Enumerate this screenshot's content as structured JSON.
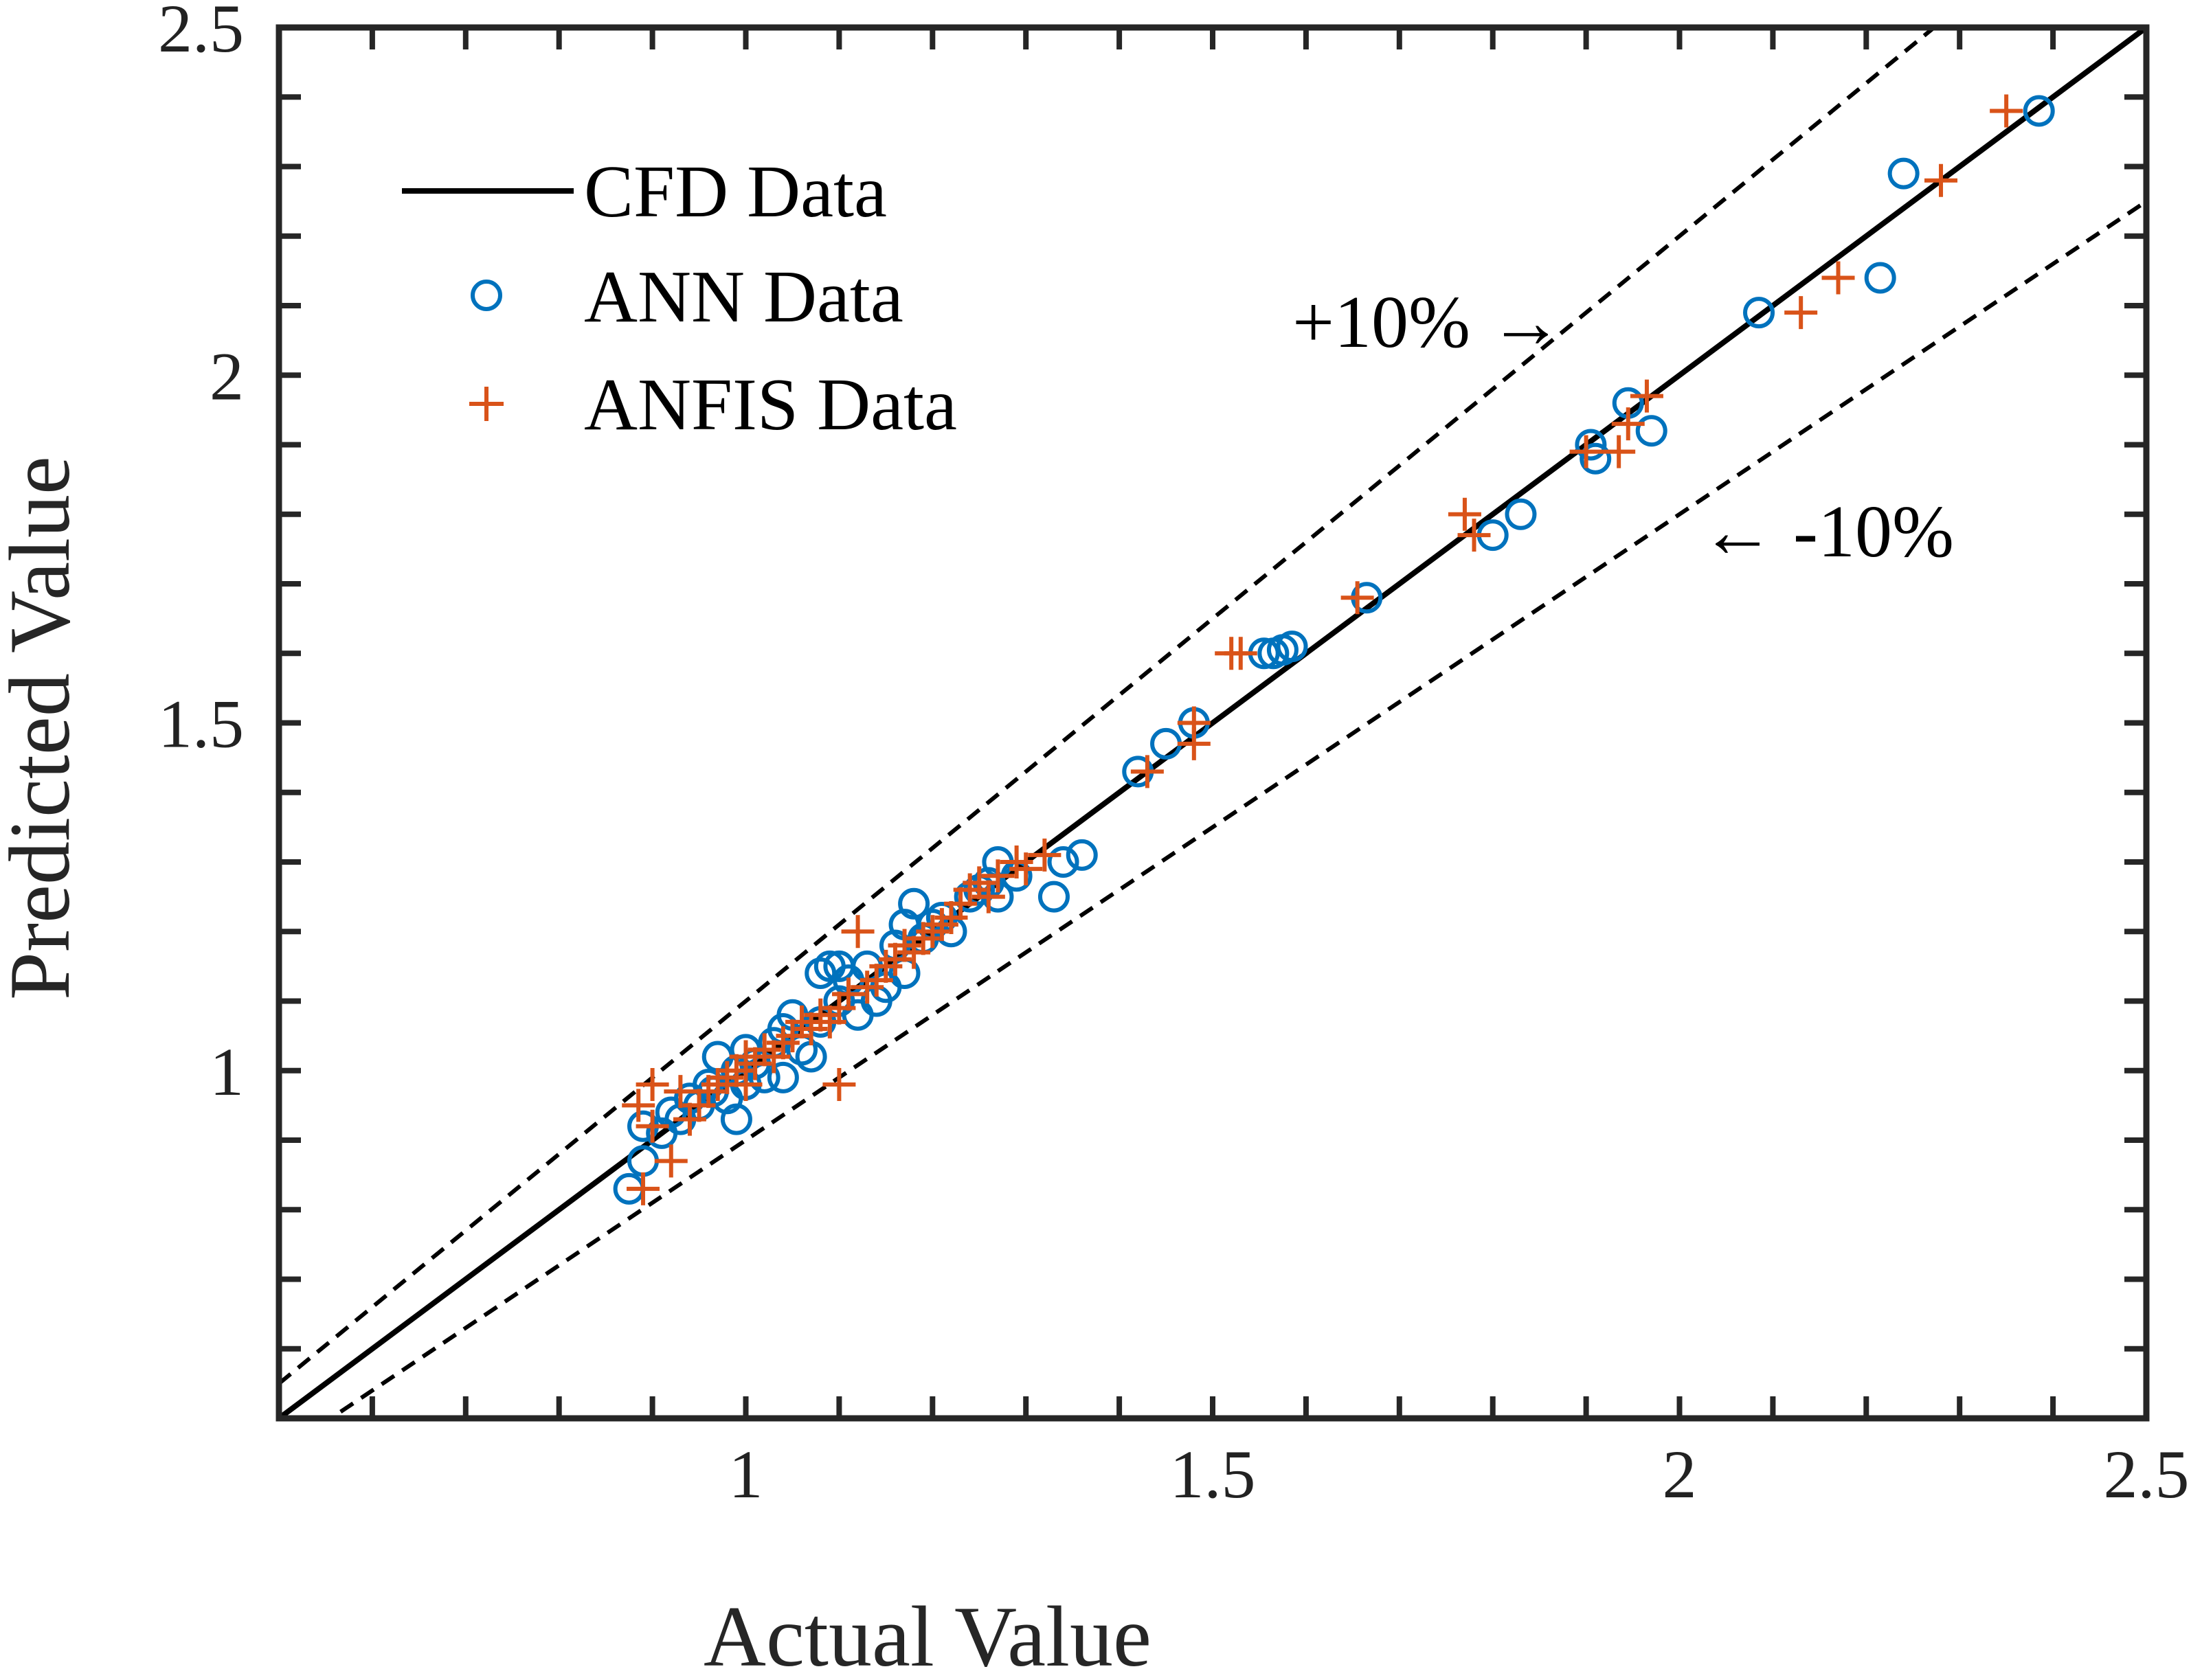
{
  "chart_data": {
    "type": "scatter",
    "xlabel": "Actual Value",
    "ylabel": "Predicted Value",
    "xlim": [
      0.5,
      2.5
    ],
    "ylim": [
      0.5,
      2.5
    ],
    "xticks": [
      1,
      1.5,
      2,
      2.5
    ],
    "yticks": [
      1,
      1.5,
      2,
      2.5
    ],
    "xtick_labels": [
      "1",
      "1.5",
      "2",
      "2.5"
    ],
    "ytick_labels": [
      "1",
      "1.5",
      "2",
      "2.5"
    ],
    "minor_tick_step": 0.1,
    "grid": false,
    "legend_position": "top-left",
    "lines": [
      {
        "name": "CFD Data",
        "style": "solid",
        "color": "#000000",
        "x": [
          0.5,
          2.5
        ],
        "y": [
          0.5,
          2.5
        ]
      },
      {
        "style": "dashed",
        "color": "#000000",
        "x": [
          0.5,
          2.5
        ],
        "y": [
          0.55,
          2.75
        ]
      },
      {
        "style": "dashed",
        "color": "#000000",
        "x": [
          0.5,
          2.5
        ],
        "y": [
          0.45,
          2.25
        ]
      }
    ],
    "series": [
      {
        "name": "ANN Data",
        "marker": "circle",
        "color": "#0072BD",
        "points": [
          [
            0.875,
            0.83
          ],
          [
            0.89,
            0.87
          ],
          [
            0.89,
            0.92
          ],
          [
            0.91,
            0.91
          ],
          [
            0.92,
            0.94
          ],
          [
            0.93,
            0.93
          ],
          [
            0.94,
            0.96
          ],
          [
            0.95,
            0.95
          ],
          [
            0.96,
            0.98
          ],
          [
            0.965,
            0.97
          ],
          [
            0.97,
            1.02
          ],
          [
            0.98,
            0.96
          ],
          [
            0.99,
            0.93
          ],
          [
            0.99,
            1.0
          ],
          [
            1.0,
            1.03
          ],
          [
            1.0,
            0.98
          ],
          [
            1.01,
            1.01
          ],
          [
            1.02,
            0.99
          ],
          [
            1.03,
            1.04
          ],
          [
            1.04,
            1.06
          ],
          [
            1.04,
            0.99
          ],
          [
            1.05,
            1.08
          ],
          [
            1.06,
            1.03
          ],
          [
            1.07,
            1.02
          ],
          [
            1.08,
            1.07
          ],
          [
            1.08,
            1.14
          ],
          [
            1.09,
            1.15
          ],
          [
            1.1,
            1.1
          ],
          [
            1.1,
            1.15
          ],
          [
            1.11,
            1.13
          ],
          [
            1.12,
            1.08
          ],
          [
            1.13,
            1.15
          ],
          [
            1.14,
            1.1
          ],
          [
            1.15,
            1.12
          ],
          [
            1.16,
            1.18
          ],
          [
            1.17,
            1.14
          ],
          [
            1.17,
            1.21
          ],
          [
            1.18,
            1.24
          ],
          [
            1.19,
            1.19
          ],
          [
            1.2,
            1.21
          ],
          [
            1.21,
            1.22
          ],
          [
            1.22,
            1.2
          ],
          [
            1.24,
            1.25
          ],
          [
            1.25,
            1.26
          ],
          [
            1.26,
            1.27
          ],
          [
            1.27,
            1.3
          ],
          [
            1.27,
            1.25
          ],
          [
            1.29,
            1.28
          ],
          [
            1.33,
            1.25
          ],
          [
            1.34,
            1.3
          ],
          [
            1.36,
            1.31
          ],
          [
            1.42,
            1.43
          ],
          [
            1.45,
            1.47
          ],
          [
            1.48,
            1.5
          ],
          [
            1.555,
            1.6
          ],
          [
            1.565,
            1.6
          ],
          [
            1.575,
            1.605
          ],
          [
            1.585,
            1.61
          ],
          [
            1.665,
            1.68
          ],
          [
            1.8,
            1.77
          ],
          [
            1.83,
            1.8
          ],
          [
            1.905,
            1.9
          ],
          [
            1.91,
            1.88
          ],
          [
            1.945,
            1.96
          ],
          [
            1.97,
            1.92
          ],
          [
            2.085,
            2.09
          ],
          [
            2.215,
            2.14
          ],
          [
            2.24,
            2.29
          ],
          [
            2.385,
            2.38
          ]
        ]
      },
      {
        "name": "ANFIS Data",
        "marker": "plus",
        "color": "#D95319",
        "points": [
          [
            0.885,
            0.95
          ],
          [
            0.89,
            0.83
          ],
          [
            0.9,
            0.98
          ],
          [
            0.9,
            0.92
          ],
          [
            0.92,
            0.87
          ],
          [
            0.93,
            0.97
          ],
          [
            0.94,
            0.93
          ],
          [
            0.95,
            0.95
          ],
          [
            0.96,
            0.97
          ],
          [
            0.97,
            0.98
          ],
          [
            0.98,
            0.99
          ],
          [
            0.99,
            1.0
          ],
          [
            1.0,
            0.98
          ],
          [
            1.0,
            1.02
          ],
          [
            1.01,
            1.01
          ],
          [
            1.02,
            1.03
          ],
          [
            1.03,
            1.02
          ],
          [
            1.04,
            1.04
          ],
          [
            1.05,
            1.05
          ],
          [
            1.06,
            1.07
          ],
          [
            1.07,
            1.06
          ],
          [
            1.08,
            1.08
          ],
          [
            1.09,
            1.07
          ],
          [
            1.1,
            1.09
          ],
          [
            1.1,
            0.98
          ],
          [
            1.11,
            1.11
          ],
          [
            1.12,
            1.2
          ],
          [
            1.13,
            1.12
          ],
          [
            1.14,
            1.13
          ],
          [
            1.15,
            1.15
          ],
          [
            1.16,
            1.16
          ],
          [
            1.17,
            1.18
          ],
          [
            1.18,
            1.17
          ],
          [
            1.19,
            1.19
          ],
          [
            1.2,
            1.2
          ],
          [
            1.21,
            1.21
          ],
          [
            1.22,
            1.22
          ],
          [
            1.23,
            1.24
          ],
          [
            1.24,
            1.26
          ],
          [
            1.25,
            1.27
          ],
          [
            1.26,
            1.25
          ],
          [
            1.27,
            1.28
          ],
          [
            1.29,
            1.3
          ],
          [
            1.3,
            1.29
          ],
          [
            1.32,
            1.31
          ],
          [
            1.43,
            1.43
          ],
          [
            1.48,
            1.47
          ],
          [
            1.48,
            1.5
          ],
          [
            1.52,
            1.6
          ],
          [
            1.53,
            1.6
          ],
          [
            1.655,
            1.68
          ],
          [
            1.77,
            1.8
          ],
          [
            1.78,
            1.77
          ],
          [
            1.9,
            1.89
          ],
          [
            1.935,
            1.89
          ],
          [
            1.945,
            1.93
          ],
          [
            1.965,
            1.97
          ],
          [
            2.13,
            2.09
          ],
          [
            2.17,
            2.14
          ],
          [
            2.28,
            2.28
          ],
          [
            2.35,
            2.38
          ]
        ]
      }
    ],
    "annotations": [
      {
        "text": "+10% →",
        "x": 1.87,
        "y": 2.08
      },
      {
        "text": "← -10%",
        "x": 2.05,
        "y": 1.78
      }
    ]
  }
}
